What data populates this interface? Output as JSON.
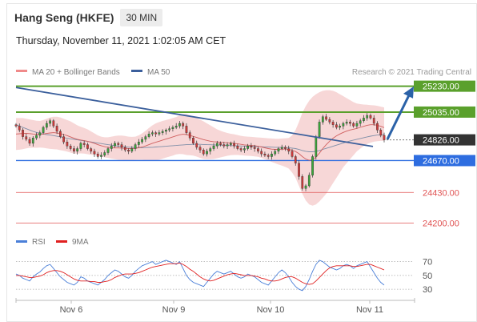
{
  "header": {
    "title": "Hang Seng (HKFE)",
    "interval": "30 MIN",
    "datetime": "Thursday, November 11, 2021 1:02:05 AM CET"
  },
  "legend": {
    "ma20_label": "MA 20 + Bollinger Bands",
    "ma50_label": "MA 50",
    "copyright": "Research © 2021 Trading Central"
  },
  "rsi_legend": {
    "rsi_label": "RSI",
    "ma_label": "9MA"
  },
  "colors": {
    "resistance": "#5aa02c",
    "support_blue": "#2e6de0",
    "support_red": "#e05252",
    "trendline": "#3b5f9c",
    "arrow": "#2b62a8",
    "price_box": "#333333",
    "bollinger": "#f4c9c9",
    "ma20": "#d06060",
    "ma50": "#7f8fa8"
  },
  "chart_data": [
    {
      "type": "line",
      "title": "",
      "x": [
        "Nov 6",
        "Nov 9",
        "Nov 10",
        "Nov 11"
      ],
      "ylim": [
        24130,
        25300
      ],
      "levels": [
        {
          "value": 25230.0,
          "label": "25230.00",
          "kind": "resistance"
        },
        {
          "value": 25035.0,
          "label": "25035.00",
          "kind": "resistance"
        },
        {
          "value": 24826.0,
          "label": "24826.00",
          "kind": "last-price"
        },
        {
          "value": 24670.0,
          "label": "24670.00",
          "kind": "support"
        },
        {
          "value": 24430.0,
          "label": "24430.00",
          "kind": "support"
        },
        {
          "value": 24200.0,
          "label": "24200.00",
          "kind": "support"
        }
      ],
      "series": [
        {
          "name": "MA 20 + Bollinger Bands"
        },
        {
          "name": "MA 50"
        }
      ],
      "price_close": [
        24930,
        24900,
        24850,
        24830,
        24800,
        24840,
        24860,
        24880,
        24920,
        24950,
        24970,
        24930,
        24890,
        24850,
        24810,
        24780,
        24760,
        24740,
        24760,
        24800,
        24790,
        24760,
        24740,
        24720,
        24700,
        24710,
        24730,
        24760,
        24780,
        24800,
        24790,
        24770,
        24750,
        24740,
        24760,
        24790,
        24810,
        24830,
        24850,
        24870,
        24880,
        24870,
        24880,
        24890,
        24900,
        24910,
        24920,
        24930,
        24950,
        24930,
        24880,
        24840,
        24800,
        24770,
        24750,
        24720,
        24740,
        24760,
        24780,
        24800,
        24790,
        24780,
        24790,
        24800,
        24780,
        24760,
        24750,
        24760,
        24780,
        24770,
        24760,
        24740,
        24720,
        24710,
        24700,
        24720,
        24740,
        24760,
        24770,
        24760,
        24740,
        24700,
        24650,
        24550,
        24460,
        24480,
        24560,
        24700,
        24850,
        24960,
        25000,
        24980,
        24960,
        24940,
        24920,
        24930,
        24950,
        24960,
        24950,
        24930,
        24950,
        24970,
        24990,
        25010,
        24990,
        24950,
        24900,
        24860,
        24826
      ],
      "ma20": [
        24870,
        24872,
        24874,
        24875,
        24873,
        24870,
        24868,
        24868,
        24870,
        24874,
        24878,
        24880,
        24878,
        24873,
        24866,
        24858,
        24848,
        24838,
        24830,
        24825,
        24820,
        24815,
        24808,
        24800,
        24790,
        24782,
        24775,
        24770,
        24766,
        24765,
        24765,
        24764,
        24762,
        24760,
        24760,
        24762,
        24766,
        24772,
        24780,
        24790,
        24800,
        24808,
        24816,
        24824,
        24832,
        24840,
        24848,
        24856,
        24864,
        24868,
        24866,
        24860,
        24852,
        24844,
        24836,
        24828,
        24822,
        24816,
        24812,
        24810,
        24808,
        24806,
        24804,
        24802,
        24800,
        24796,
        24792,
        24788,
        24786,
        24784,
        24782,
        24778,
        24772,
        24766,
        24760,
        24756,
        24754,
        24754,
        24756,
        24756,
        24754,
        24748,
        24738,
        24722,
        24700,
        24682,
        24672,
        24676,
        24696,
        24726,
        24760,
        24790,
        24816,
        24838,
        24856,
        24870,
        24882,
        24892,
        24900,
        24906,
        24912,
        24920,
        24928,
        24936,
        24940,
        24940,
        24936,
        24928,
        24918
      ],
      "bb_upper": [
        24990,
        24990,
        24990,
        24985,
        24980,
        24975,
        24970,
        24968,
        24975,
        24985,
        24995,
        25000,
        25000,
        24995,
        24985,
        24975,
        24965,
        24950,
        24935,
        24925,
        24915,
        24905,
        24890,
        24875,
        24860,
        24850,
        24845,
        24845,
        24850,
        24855,
        24858,
        24858,
        24855,
        24850,
        24848,
        24850,
        24860,
        24875,
        24895,
        24915,
        24935,
        24950,
        24960,
        24968,
        24975,
        24982,
        24990,
        24998,
        25010,
        25020,
        25020,
        25012,
        25000,
        24990,
        24978,
        24965,
        24950,
        24935,
        24920,
        24905,
        24895,
        24885,
        24878,
        24872,
        24868,
        24862,
        24856,
        24852,
        24850,
        24848,
        24846,
        24844,
        24842,
        24840,
        24838,
        24836,
        24834,
        24834,
        24836,
        24838,
        24840,
        24860,
        24900,
        24960,
        25030,
        25080,
        25120,
        25150,
        25170,
        25185,
        25195,
        25200,
        25200,
        25195,
        25185,
        25170,
        25155,
        25140,
        25125,
        25110,
        25100,
        25095,
        25092,
        25090,
        25088,
        25086,
        25082,
        25076,
        25070
      ],
      "bb_lower": [
        24750,
        24752,
        24756,
        24762,
        24766,
        24766,
        24766,
        24768,
        24766,
        24762,
        24758,
        24756,
        24754,
        24748,
        24744,
        24738,
        24730,
        24722,
        24722,
        24724,
        24722,
        24718,
        24714,
        24712,
        24708,
        24700,
        24694,
        24690,
        24685,
        24680,
        24676,
        24674,
        24672,
        24672,
        24672,
        24674,
        24675,
        24675,
        24670,
        24668,
        24668,
        24670,
        24676,
        24684,
        24692,
        24700,
        24708,
        24716,
        24720,
        24718,
        24712,
        24710,
        24708,
        24700,
        24690,
        24682,
        24680,
        24680,
        24682,
        24688,
        24694,
        24700,
        24706,
        24710,
        24712,
        24712,
        24710,
        24708,
        24706,
        24704,
        24702,
        24698,
        24690,
        24680,
        24670,
        24660,
        24650,
        24640,
        24632,
        24622,
        24610,
        24580,
        24540,
        24480,
        24420,
        24370,
        24340,
        24330,
        24340,
        24362,
        24390,
        24420,
        24460,
        24500,
        24540,
        24580,
        24620,
        24650,
        24680,
        24710,
        24740,
        24760,
        24780,
        24795,
        24805,
        24812,
        24816,
        24818,
        24818
      ],
      "ma50": [
        24940,
        24930,
        24920,
        24910,
        24900,
        24890,
        24882,
        24875,
        24870,
        24866,
        24862,
        24858,
        24853,
        24848,
        24843,
        24838,
        24834,
        24830,
        24826,
        24822,
        24818,
        24814,
        24810,
        24806,
        24802,
        24798,
        24794,
        24790,
        24786,
        24782,
        24779,
        24776,
        24773,
        24771,
        24769,
        24768,
        24767,
        24767,
        24768,
        24769,
        24770,
        24772,
        24774,
        24776,
        24778,
        24780,
        24782,
        24784,
        24786,
        24788,
        24790,
        24791,
        24792,
        24792,
        24792,
        24791,
        24790,
        24789,
        24788,
        24787,
        24786,
        24785,
        24784,
        24783,
        24782,
        24781,
        24780,
        24779,
        24778,
        24777,
        24776,
        24775,
        24774,
        24773,
        24772,
        24771,
        24770,
        24770,
        24769,
        24768,
        24767,
        24764,
        24760,
        24754,
        24746,
        24740,
        24736,
        24736,
        24740,
        24746,
        24754,
        24762,
        24770,
        24778,
        24786,
        24794,
        24802,
        24810,
        24818,
        24824,
        24830,
        24836,
        24842,
        24848,
        24854,
        24858,
        24862,
        24864,
        24865
      ],
      "trendline": {
        "start": 25220,
        "end": 24776
      },
      "forecast_arrow": {
        "from": 24830,
        "to": 25210
      }
    },
    {
      "type": "line",
      "title": "",
      "ylim": [
        22,
        80
      ],
      "yticks": [
        70,
        50,
        30
      ],
      "series": [
        {
          "name": "RSI",
          "color": "#4a7fd8",
          "values": [
            52,
            50,
            46,
            44,
            42,
            48,
            52,
            55,
            60,
            64,
            66,
            60,
            54,
            48,
            44,
            40,
            38,
            36,
            40,
            48,
            46,
            42,
            40,
            38,
            36,
            40,
            44,
            50,
            54,
            58,
            56,
            52,
            48,
            46,
            50,
            56,
            60,
            64,
            66,
            68,
            70,
            66,
            68,
            70,
            72,
            70,
            68,
            66,
            70,
            60,
            50,
            44,
            40,
            38,
            36,
            34,
            40,
            46,
            52,
            56,
            54,
            52,
            54,
            56,
            52,
            48,
            46,
            48,
            52,
            50,
            48,
            44,
            40,
            38,
            36,
            42,
            48,
            54,
            58,
            54,
            48,
            40,
            34,
            30,
            28,
            34,
            44,
            56,
            66,
            72,
            70,
            66,
            62,
            60,
            58,
            60,
            64,
            66,
            64,
            60,
            64,
            66,
            68,
            70,
            62,
            54,
            46,
            40,
            36
          ]
        },
        {
          "name": "9MA",
          "color": "#e02020",
          "values": [
            50,
            50,
            49,
            48,
            47,
            47,
            48,
            49,
            51,
            54,
            56,
            57,
            57,
            56,
            54,
            51,
            48,
            45,
            43,
            42,
            42,
            42,
            41,
            41,
            40,
            40,
            41,
            42,
            44,
            47,
            49,
            51,
            52,
            52,
            52,
            53,
            54,
            56,
            58,
            60,
            62,
            63,
            64,
            65,
            66,
            67,
            67,
            67,
            68,
            66,
            63,
            59,
            56,
            52,
            48,
            45,
            43,
            42,
            43,
            45,
            47,
            49,
            51,
            52,
            53,
            52,
            51,
            50,
            50,
            50,
            49,
            48,
            46,
            45,
            43,
            42,
            42,
            43,
            45,
            47,
            48,
            48,
            46,
            43,
            40,
            38,
            37,
            38,
            42,
            47,
            52,
            57,
            61,
            63,
            64,
            64,
            64,
            64,
            64,
            63,
            63,
            64,
            65,
            66,
            66,
            64,
            62,
            60,
            58
          ]
        }
      ]
    }
  ]
}
